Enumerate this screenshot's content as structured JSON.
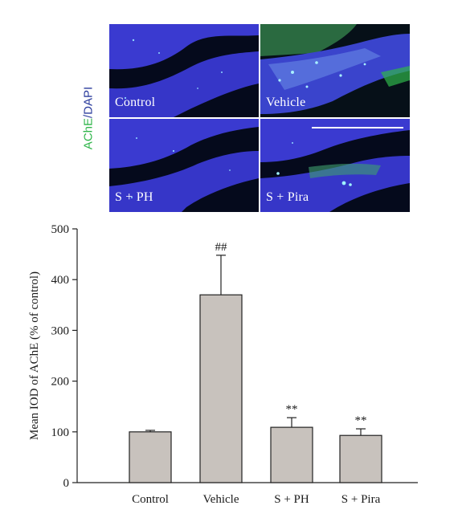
{
  "figure": {
    "stain_label": {
      "ache": "AChE",
      "sep": "/",
      "dapi": "DAPI"
    },
    "panels": [
      {
        "label": "Control"
      },
      {
        "label": "Vehicle"
      },
      {
        "label": "S + PH"
      },
      {
        "label": "S + Pira"
      }
    ],
    "colors": {
      "dapi": "#3a3ad0",
      "ache": "#2fb54a",
      "background": "#050a1c"
    }
  },
  "chart_data": {
    "type": "bar",
    "categories": [
      "Control",
      "Vehicle",
      "S + PH",
      "S + Pira"
    ],
    "values": [
      100,
      370,
      109,
      93
    ],
    "errors": [
      3,
      78,
      19,
      13
    ],
    "annotations": [
      "",
      "##",
      "**",
      "**"
    ],
    "title": "",
    "xlabel": "",
    "ylabel": "Mean IOD of AChE (% of control)",
    "ylim": [
      0,
      500
    ],
    "yticks": [
      0,
      100,
      200,
      300,
      400,
      500
    ],
    "bar_color": "#c8c2bd",
    "grid": false
  }
}
